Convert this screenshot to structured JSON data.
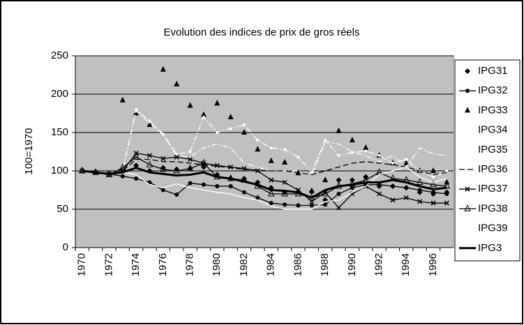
{
  "chart_data": {
    "type": "line",
    "title": "Evolution des indices de prix de gros réels",
    "y_label": "100=1970",
    "categories": [
      "1970",
      null,
      "1972",
      null,
      "1974",
      null,
      "1976",
      null,
      "1978",
      null,
      "1980",
      null,
      "1982",
      null,
      "1984",
      null,
      "1986",
      null,
      "1988",
      null,
      "1990",
      null,
      "1992",
      null,
      "1994",
      null,
      "1996",
      null
    ],
    "ylim": [
      0,
      250
    ],
    "yticks": [
      0,
      50,
      100,
      150,
      200,
      250
    ],
    "grid": true,
    "legend": "right",
    "series": [
      {
        "name": "IPG31",
        "color": "#000000",
        "marker": "diamond",
        "line": "none",
        "values": [
          100,
          98,
          96,
          100,
          107,
          100,
          104,
          102,
          103,
          105,
          95,
          90,
          90,
          85,
          78,
          72,
          73,
          73,
          62,
          88,
          88,
          92,
          80,
          80,
          78,
          72,
          70,
          72
        ]
      },
      {
        "name": "IPG32",
        "color": "#000000",
        "marker": "circle",
        "line": "solid",
        "values": [
          100,
          98,
          96,
          93,
          90,
          85,
          75,
          69,
          84,
          82,
          80,
          80,
          72,
          65,
          58,
          56,
          55,
          55,
          56,
          70,
          78,
          82,
          82,
          80,
          78,
          75,
          72,
          70
        ]
      },
      {
        "name": "IPG33",
        "color": "#000000",
        "marker": "triangle",
        "line": "none",
        "values": [
          100,
          98,
          96,
          192,
          175,
          160,
          232,
          213,
          185,
          173,
          188,
          170,
          150,
          128,
          113,
          111,
          97,
          74,
          88,
          152,
          140,
          130,
          120,
          110,
          110,
          100,
          100,
          85
        ]
      },
      {
        "name": "IPG34",
        "color": "#ffffff",
        "marker": "dot",
        "line": "dashdot",
        "values": [
          100,
          98,
          96,
          100,
          180,
          165,
          148,
          122,
          125,
          170,
          150,
          155,
          160,
          140,
          130,
          128,
          118,
          98,
          140,
          120,
          124,
          126,
          120,
          110,
          115,
          100,
          92,
          100
        ]
      },
      {
        "name": "IPG35",
        "color": "#ffffff",
        "marker": "none",
        "line": "dashdot",
        "values": [
          100,
          98,
          97,
          100,
          178,
          162,
          147,
          120,
          118,
          130,
          135,
          130,
          110,
          105,
          100,
          100,
          100,
          95,
          138,
          135,
          125,
          120,
          112,
          120,
          105,
          130,
          122,
          120
        ]
      },
      {
        "name": "IPG36",
        "color": "#000000",
        "marker": "none",
        "line": "dashed",
        "values": [
          100,
          98,
          96,
          100,
          115,
          115,
          112,
          112,
          110,
          108,
          106,
          104,
          102,
          101,
          100,
          100,
          98,
          95,
          100,
          105,
          110,
          112,
          110,
          108,
          105,
          100,
          95,
          98
        ]
      },
      {
        "name": "IPG37",
        "color": "#000000",
        "marker": "x",
        "line": "solid",
        "values": [
          100,
          98,
          96,
          100,
          123,
          120,
          116,
          118,
          115,
          110,
          107,
          105,
          103,
          100,
          88,
          85,
          75,
          60,
          72,
          52,
          70,
          80,
          70,
          62,
          65,
          60,
          58,
          58
        ]
      },
      {
        "name": "IPG38",
        "color": "#000000",
        "marker": "open-triangle",
        "line": "solid",
        "values": [
          100,
          98,
          95,
          104,
          118,
          108,
          102,
          100,
          103,
          110,
          92,
          90,
          88,
          80,
          70,
          70,
          70,
          65,
          70,
          80,
          83,
          88,
          98,
          90,
          88,
          85,
          82,
          80
        ]
      },
      {
        "name": "IPG39",
        "color": "#ffffff",
        "marker": "none",
        "line": "solid",
        "values": [
          100,
          98,
          96,
          98,
          95,
          82,
          78,
          83,
          78,
          75,
          72,
          70,
          65,
          62,
          54,
          50,
          50,
          50,
          60,
          62,
          72,
          80,
          95,
          100,
          105,
          92,
          85,
          90
        ]
      },
      {
        "name": "IPG3",
        "color": "#000000",
        "marker": "none",
        "line": "thick",
        "values": [
          100,
          98,
          96,
          98,
          104,
          98,
          96,
          94,
          95,
          98,
          92,
          90,
          86,
          82,
          75,
          74,
          72,
          65,
          75,
          80,
          82,
          85,
          85,
          88,
          85,
          80,
          76,
          78
        ]
      }
    ]
  }
}
